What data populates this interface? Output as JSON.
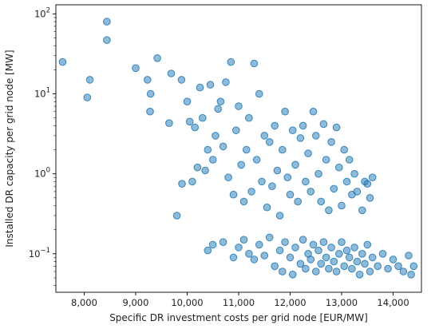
{
  "chart_data": {
    "type": "scatter",
    "title": "",
    "xlabel": "Specific DR investment costs per grid node [EUR/MW]",
    "ylabel": "Installed DR capacity per grid node [MW]",
    "xlim": [
      7450,
      14550
    ],
    "ylim": [
      0.033,
      130
    ],
    "yscale": "log",
    "grid": false,
    "color": "#1f77b4",
    "x_ticks": [
      {
        "value": 8000,
        "label": "8,000"
      },
      {
        "value": 9000,
        "label": "9,000"
      },
      {
        "value": 10000,
        "label": "10,000"
      },
      {
        "value": 11000,
        "label": "11,000"
      },
      {
        "value": 12000,
        "label": "12,000"
      },
      {
        "value": 13000,
        "label": "13,000"
      },
      {
        "value": 14000,
        "label": "14,000"
      }
    ],
    "y_ticks": [
      {
        "value": 0.1,
        "base": "10",
        "exp": "−1"
      },
      {
        "value": 1,
        "base": "10",
        "exp": "0"
      },
      {
        "value": 10,
        "base": "10",
        "exp": "1"
      },
      {
        "value": 100,
        "base": "10",
        "exp": "2"
      }
    ],
    "points": [
      [
        7580,
        25
      ],
      [
        8060,
        9
      ],
      [
        8110,
        15
      ],
      [
        8440,
        80
      ],
      [
        8440,
        47
      ],
      [
        9000,
        21
      ],
      [
        9230,
        15
      ],
      [
        9280,
        6
      ],
      [
        9290,
        10
      ],
      [
        9420,
        28
      ],
      [
        9650,
        4.3
      ],
      [
        9690,
        18
      ],
      [
        9800,
        0.3
      ],
      [
        9890,
        15
      ],
      [
        9900,
        0.75
      ],
      [
        10050,
        4.5
      ],
      [
        10000,
        8
      ],
      [
        10100,
        0.8
      ],
      [
        10150,
        3.8
      ],
      [
        10200,
        1.2
      ],
      [
        10250,
        12
      ],
      [
        10300,
        5
      ],
      [
        10350,
        1.1
      ],
      [
        10400,
        2
      ],
      [
        10450,
        13
      ],
      [
        10500,
        1.5
      ],
      [
        10550,
        3
      ],
      [
        10600,
        6.5
      ],
      [
        10650,
        8
      ],
      [
        10700,
        2.2
      ],
      [
        10750,
        14
      ],
      [
        10800,
        0.9
      ],
      [
        10850,
        25
      ],
      [
        10900,
        0.55
      ],
      [
        10950,
        3.5
      ],
      [
        11000,
        7
      ],
      [
        11050,
        1.3
      ],
      [
        11100,
        0.45
      ],
      [
        11150,
        2
      ],
      [
        11200,
        5
      ],
      [
        11250,
        0.6
      ],
      [
        11300,
        24
      ],
      [
        11350,
        1.5
      ],
      [
        11400,
        10
      ],
      [
        11450,
        0.8
      ],
      [
        11500,
        3
      ],
      [
        11550,
        0.38
      ],
      [
        11600,
        2.5
      ],
      [
        11650,
        0.7
      ],
      [
        11700,
        4
      ],
      [
        11750,
        1.1
      ],
      [
        11800,
        0.3
      ],
      [
        11850,
        2
      ],
      [
        11900,
        6
      ],
      [
        11950,
        0.9
      ],
      [
        12000,
        0.55
      ],
      [
        12050,
        3.5
      ],
      [
        12100,
        1.3
      ],
      [
        12150,
        0.45
      ],
      [
        12200,
        2.8
      ],
      [
        12250,
        4
      ],
      [
        12300,
        0.8
      ],
      [
        12350,
        1.8
      ],
      [
        12400,
        0.6
      ],
      [
        12450,
        6
      ],
      [
        12500,
        3
      ],
      [
        12550,
        1
      ],
      [
        12600,
        0.45
      ],
      [
        12650,
        4.2
      ],
      [
        12700,
        1.5
      ],
      [
        12750,
        0.35
      ],
      [
        12800,
        2.5
      ],
      [
        12850,
        0.65
      ],
      [
        12900,
        3.8
      ],
      [
        12950,
        1.2
      ],
      [
        13000,
        0.4
      ],
      [
        13050,
        2
      ],
      [
        13100,
        0.8
      ],
      [
        13150,
        1.5
      ],
      [
        13200,
        0.55
      ],
      [
        13250,
        1
      ],
      [
        13300,
        0.6
      ],
      [
        13400,
        0.35
      ],
      [
        13450,
        0.8
      ],
      [
        13500,
        0.75
      ],
      [
        13550,
        0.5
      ],
      [
        13600,
        0.9
      ],
      [
        10400,
        0.11
      ],
      [
        10500,
        0.13
      ],
      [
        10700,
        0.14
      ],
      [
        10900,
        0.09
      ],
      [
        11000,
        0.12
      ],
      [
        11100,
        0.15
      ],
      [
        11200,
        0.1
      ],
      [
        11300,
        0.085
      ],
      [
        11400,
        0.13
      ],
      [
        11500,
        0.095
      ],
      [
        11600,
        0.16
      ],
      [
        11700,
        0.07
      ],
      [
        11800,
        0.11
      ],
      [
        11850,
        0.06
      ],
      [
        11900,
        0.14
      ],
      [
        12000,
        0.09
      ],
      [
        12050,
        0.055
      ],
      [
        12100,
        0.12
      ],
      [
        12200,
        0.075
      ],
      [
        12250,
        0.15
      ],
      [
        12300,
        0.065
      ],
      [
        12350,
        0.1
      ],
      [
        12400,
        0.085
      ],
      [
        12450,
        0.13
      ],
      [
        12500,
        0.06
      ],
      [
        12550,
        0.11
      ],
      [
        12600,
        0.075
      ],
      [
        12650,
        0.14
      ],
      [
        12700,
        0.09
      ],
      [
        12750,
        0.065
      ],
      [
        12800,
        0.12
      ],
      [
        12850,
        0.08
      ],
      [
        12900,
        0.06
      ],
      [
        12950,
        0.1
      ],
      [
        13000,
        0.14
      ],
      [
        13050,
        0.07
      ],
      [
        13100,
        0.11
      ],
      [
        13150,
        0.09
      ],
      [
        13200,
        0.065
      ],
      [
        13250,
        0.12
      ],
      [
        13300,
        0.08
      ],
      [
        13350,
        0.055
      ],
      [
        13400,
        0.1
      ],
      [
        13450,
        0.075
      ],
      [
        13500,
        0.13
      ],
      [
        13550,
        0.06
      ],
      [
        13600,
        0.09
      ],
      [
        13700,
        0.07
      ],
      [
        13800,
        0.1
      ],
      [
        13900,
        0.065
      ],
      [
        14000,
        0.085
      ],
      [
        14100,
        0.07
      ],
      [
        14200,
        0.06
      ],
      [
        14300,
        0.095
      ],
      [
        14350,
        0.055
      ],
      [
        14400,
        0.07
      ]
    ]
  }
}
